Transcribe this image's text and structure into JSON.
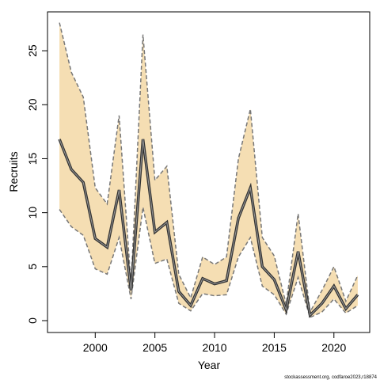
{
  "chart_data": {
    "type": "line",
    "xlabel": "Year",
    "ylabel": "Recruits",
    "footnote": "stockassessment.org, codfaroe2023,r18874",
    "x": [
      1997,
      1998,
      1999,
      2000,
      2001,
      2002,
      2003,
      2004,
      2005,
      2006,
      2007,
      2008,
      2009,
      2010,
      2011,
      2012,
      2013,
      2014,
      2015,
      2016,
      2017,
      2018,
      2019,
      2020,
      2021,
      2022
    ],
    "values": [
      16.8,
      14.0,
      12.8,
      7.6,
      6.8,
      12.1,
      2.8,
      16.8,
      8.2,
      9.1,
      2.7,
      1.4,
      3.9,
      3.4,
      3.7,
      9.5,
      12.3,
      5.0,
      3.8,
      1.0,
      6.4,
      0.5,
      1.6,
      3.2,
      1.1,
      2.4
    ],
    "upper": [
      27.6,
      23.0,
      20.7,
      12.3,
      10.8,
      19.0,
      3.3,
      26.5,
      13.0,
      14.3,
      4.3,
      2.1,
      5.9,
      5.2,
      5.9,
      15.0,
      19.6,
      7.7,
      6.0,
      1.5,
      9.9,
      0.8,
      2.8,
      5.0,
      1.8,
      4.2
    ],
    "lower": [
      10.3,
      8.7,
      7.9,
      4.8,
      4.3,
      7.7,
      2.0,
      10.5,
      5.3,
      5.7,
      1.6,
      0.9,
      2.5,
      2.3,
      2.4,
      5.9,
      7.7,
      3.2,
      2.4,
      0.6,
      4.0,
      0.3,
      0.8,
      2.0,
      0.7,
      1.4
    ],
    "color": "#333333",
    "band_color": "#f5deb3",
    "band_edge_color": "#777777",
    "xlim": [
      1996,
      2023
    ],
    "ylim": [
      -1.1,
      28.6
    ],
    "xticks": [
      2000,
      2005,
      2010,
      2015,
      2020
    ],
    "yticks": [
      0,
      5,
      10,
      15,
      20,
      25
    ]
  }
}
